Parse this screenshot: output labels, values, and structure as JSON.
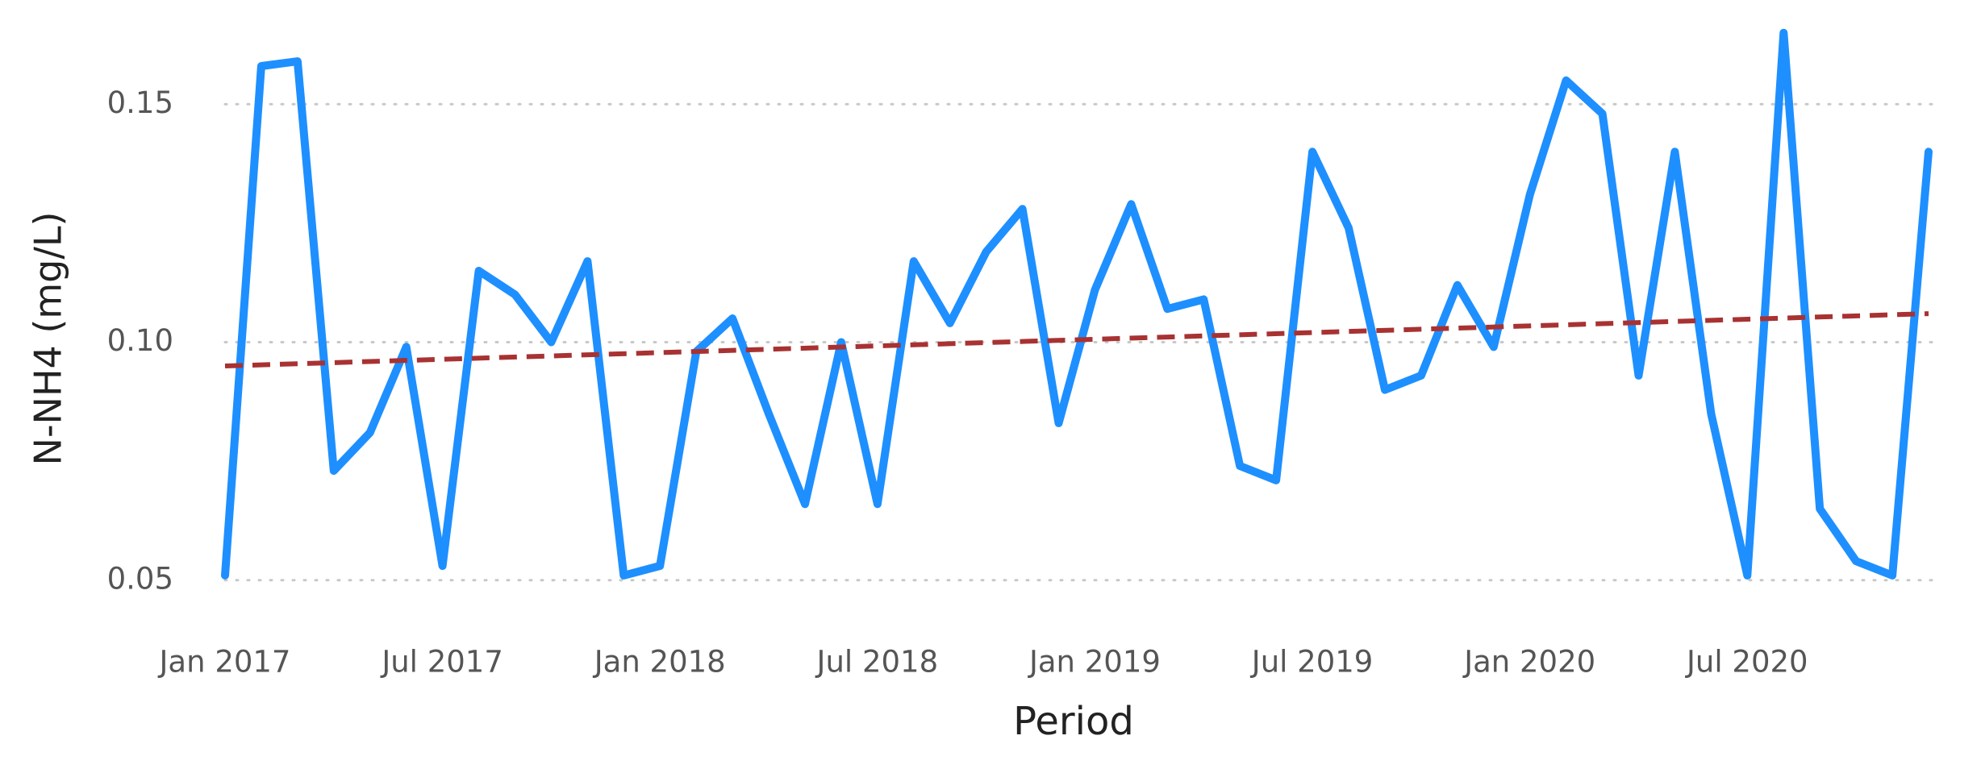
{
  "chart_data": {
    "type": "line",
    "x_label": "Period",
    "y_label": "N-NH4 (mg/L)",
    "series": [
      {
        "color": "#1e8fff",
        "x": [
          "2017-01",
          "2017-02",
          "2017-03",
          "2017-04",
          "2017-05",
          "2017-06",
          "2017-07",
          "2017-08",
          "2017-09",
          "2017-10",
          "2017-11",
          "2017-12",
          "2018-01",
          "2018-02",
          "2018-03",
          "2018-04",
          "2018-05",
          "2018-06",
          "2018-07",
          "2018-08",
          "2018-09",
          "2018-10",
          "2018-11",
          "2018-12",
          "2019-01",
          "2019-02",
          "2019-03",
          "2019-04",
          "2019-05",
          "2019-06",
          "2019-07",
          "2019-08",
          "2019-09",
          "2019-10",
          "2019-11",
          "2019-12",
          "2020-01",
          "2020-02",
          "2020-03",
          "2020-04",
          "2020-05",
          "2020-06",
          "2020-07",
          "2020-08",
          "2020-09",
          "2020-10",
          "2020-11",
          "2020-12"
        ],
        "values": [
          0.051,
          0.158,
          0.159,
          0.073,
          0.081,
          0.099,
          0.053,
          0.115,
          0.11,
          0.1,
          0.117,
          0.051,
          0.053,
          0.098,
          0.105,
          0.085,
          0.066,
          0.1,
          0.066,
          0.117,
          0.104,
          0.119,
          0.128,
          0.083,
          0.111,
          0.129,
          0.107,
          0.109,
          0.074,
          0.071,
          0.14,
          0.124,
          0.09,
          0.093,
          0.112,
          0.099,
          0.131,
          0.155,
          0.148,
          0.093,
          0.14,
          0.085,
          0.051,
          0.165,
          0.065,
          0.054,
          0.051,
          0.14
        ]
      },
      {
        "color": "#a83232",
        "dashed": true,
        "x": [
          "2017-01",
          "2020-12"
        ],
        "values": [
          0.095,
          0.106
        ]
      }
    ],
    "xlim": [
      "2017-01",
      "2020-12"
    ],
    "xticks": [
      {
        "value": "2017-01",
        "label": "Jan 2017"
      },
      {
        "value": "2017-07",
        "label": "Jul 2017"
      },
      {
        "value": "2018-01",
        "label": "Jan 2018"
      },
      {
        "value": "2018-07",
        "label": "Jul 2018"
      },
      {
        "value": "2019-01",
        "label": "Jan 2019"
      },
      {
        "value": "2019-07",
        "label": "Jul 2019"
      },
      {
        "value": "2020-01",
        "label": "Jan 2020"
      },
      {
        "value": "2020-07",
        "label": "Jul 2020"
      }
    ],
    "ylim": [
      0.042,
      0.168
    ],
    "yticks": [
      0.05,
      {
        "value": 0.1,
        "label": "0.10"
      },
      0.15
    ],
    "grid": true
  }
}
